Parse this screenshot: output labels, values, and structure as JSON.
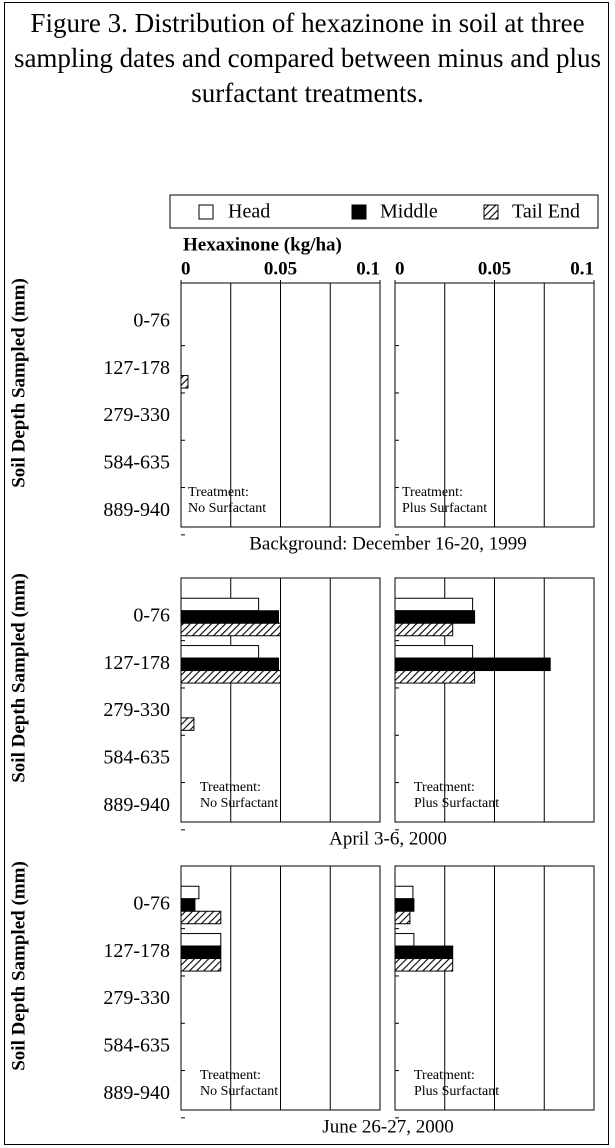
{
  "figure_title": "Figure 3. Distribution of hexazinone in soil at three sampling dates and compared between minus and plus surfactant treatments.",
  "chart_data": [
    {
      "type": "bar",
      "x_label": "Hexaxinone (kg/ha)",
      "ylabel": "Soil Depth Sampled (mm)",
      "caption": "Background: December 16-20, 1999",
      "annotation": [
        "Treatment:",
        "No Surfactant"
      ],
      "categories": [
        "0-76",
        "127-178",
        "279-330",
        "584-635",
        "889-940"
      ],
      "xlim": [
        0,
        0.1
      ],
      "xticks": [
        0,
        0.05,
        0.1
      ],
      "xgrid": [
        0.025,
        0.05,
        0.075
      ],
      "series": [
        {
          "name": "Head",
          "color": "#ffffff",
          "values": [
            0,
            0,
            0,
            0,
            0
          ]
        },
        {
          "name": "Middle",
          "color": "#000000",
          "values": [
            0,
            0,
            0,
            0,
            0
          ]
        },
        {
          "name": "Tail End",
          "color": "#000000",
          "pattern": "hatch",
          "values": [
            0,
            0.0035,
            0,
            0,
            0
          ]
        }
      ]
    },
    {
      "type": "bar",
      "annotation": [
        "Treatment:",
        "Plus Surfactant"
      ],
      "xlim": [
        0,
        0.1
      ],
      "xticks": [
        0,
        0.05,
        0.1
      ],
      "xgrid": [
        0.025,
        0.05,
        0.075
      ],
      "series": [
        {
          "color": "#ffffff",
          "values": [
            0,
            0,
            0,
            0,
            0
          ]
        },
        {
          "color": "#000000",
          "values": [
            0,
            0,
            0,
            0,
            0
          ]
        },
        {
          "color": "#000000",
          "pattern": "hatch",
          "values": [
            0,
            0,
            0,
            0,
            0
          ]
        }
      ]
    },
    {
      "type": "bar",
      "ylabel": "Soil Depth Sampled (mm)",
      "caption": "April 3-6, 2000",
      "annotation": [
        "Treatment:",
        "No Surfactant"
      ],
      "categories": [
        "0-76",
        "127-178",
        "279-330",
        "584-635",
        "889-940"
      ],
      "xlim": [
        0,
        0.1
      ],
      "xgrid": [
        0.025,
        0.05,
        0.075
      ],
      "series": [
        {
          "color": "#ffffff",
          "values": [
            0.039,
            0.039,
            0,
            0,
            0
          ]
        },
        {
          "color": "#000000",
          "values": [
            0.049,
            0.049,
            0,
            0,
            0
          ]
        },
        {
          "color": "#000000",
          "pattern": "hatch",
          "values": [
            0.05,
            0.05,
            0.0065,
            0,
            0
          ]
        }
      ]
    },
    {
      "type": "bar",
      "annotation": [
        "Treatment:",
        "Plus Surfactant"
      ],
      "xlim": [
        0,
        0.1
      ],
      "xgrid": [
        0.025,
        0.05,
        0.075
      ],
      "series": [
        {
          "color": "#ffffff",
          "values": [
            0.039,
            0.039,
            0,
            0,
            0
          ]
        },
        {
          "color": "#000000",
          "values": [
            0.04,
            0.078,
            0,
            0,
            0
          ]
        },
        {
          "color": "#000000",
          "pattern": "hatch",
          "values": [
            0.029,
            0.04,
            0,
            0,
            0
          ]
        }
      ]
    },
    {
      "type": "bar",
      "ylabel": "Soil Depth Sampled (mm)",
      "caption": "June 26-27, 2000",
      "annotation": [
        "Treatment:",
        "No Surfactant"
      ],
      "categories": [
        "0-76",
        "127-178",
        "279-330",
        "584-635",
        "889-940"
      ],
      "xlim": [
        0,
        0.1
      ],
      "xgrid": [
        0.025,
        0.05,
        0.075
      ],
      "series": [
        {
          "color": "#ffffff",
          "values": [
            0.009,
            0.02,
            0,
            0,
            0
          ]
        },
        {
          "color": "#000000",
          "values": [
            0.007,
            0.02,
            0,
            0,
            0
          ]
        },
        {
          "color": "#000000",
          "pattern": "hatch",
          "values": [
            0.02,
            0.02,
            0,
            0,
            0
          ]
        }
      ]
    },
    {
      "type": "bar",
      "annotation": [
        "Treatment:",
        "Plus Surfactant"
      ],
      "xlim": [
        0,
        0.1
      ],
      "xgrid": [
        0.025,
        0.05,
        0.075
      ],
      "series": [
        {
          "color": "#ffffff",
          "values": [
            0.009,
            0.0095,
            0,
            0,
            0
          ]
        },
        {
          "color": "#000000",
          "values": [
            0.0095,
            0.029,
            0,
            0,
            0
          ]
        },
        {
          "color": "#000000",
          "pattern": "hatch",
          "values": [
            0.0075,
            0.029,
            0,
            0,
            0
          ]
        }
      ]
    }
  ]
}
